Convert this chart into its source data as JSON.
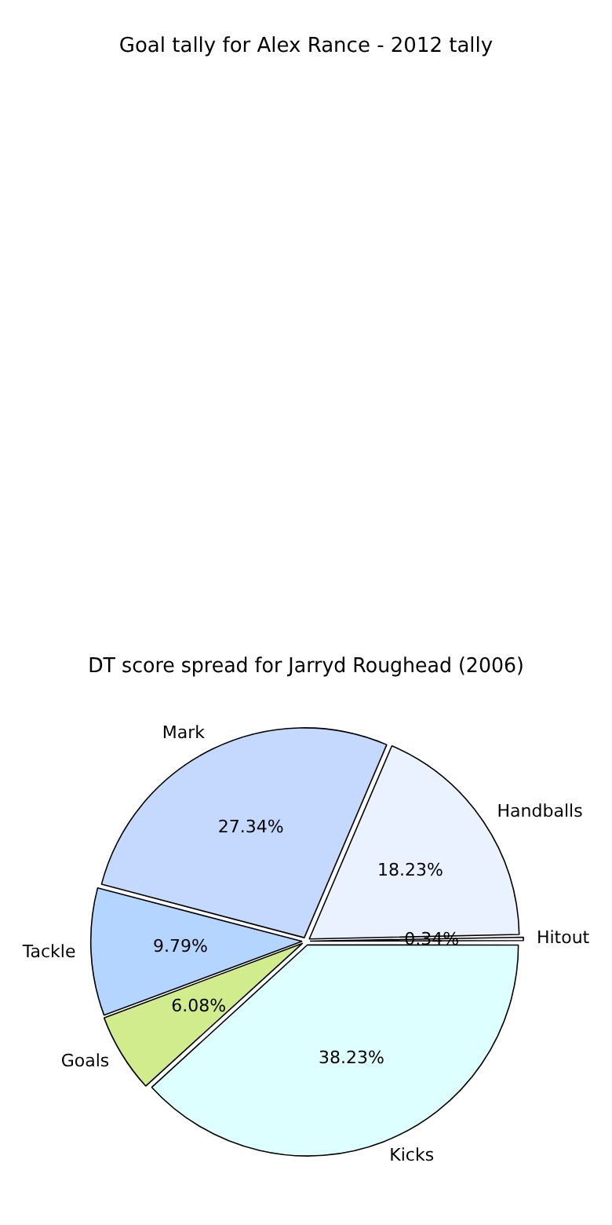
{
  "chart_data": [
    {
      "type": "other",
      "title": "Goal tally for Alex Rance - 2012 tally"
    },
    {
      "type": "pie",
      "title": "DT score spread for Jarryd Roughead (2006)",
      "categories": [
        "Kicks",
        "Goals",
        "Tackle",
        "Mark",
        "Handballs",
        "Hitout"
      ],
      "values": [
        38.23,
        6.08,
        9.79,
        27.34,
        18.23,
        0.34
      ],
      "value_labels": [
        "38.23%",
        "6.08%",
        "9.79%",
        "27.34%",
        "18.23%",
        "0.34%"
      ],
      "colors": [
        "#ddffff",
        "#d0ec8c",
        "#b3d5ff",
        "#c5d9ff",
        "#ebf2ff",
        "#f5f5ff"
      ]
    }
  ]
}
